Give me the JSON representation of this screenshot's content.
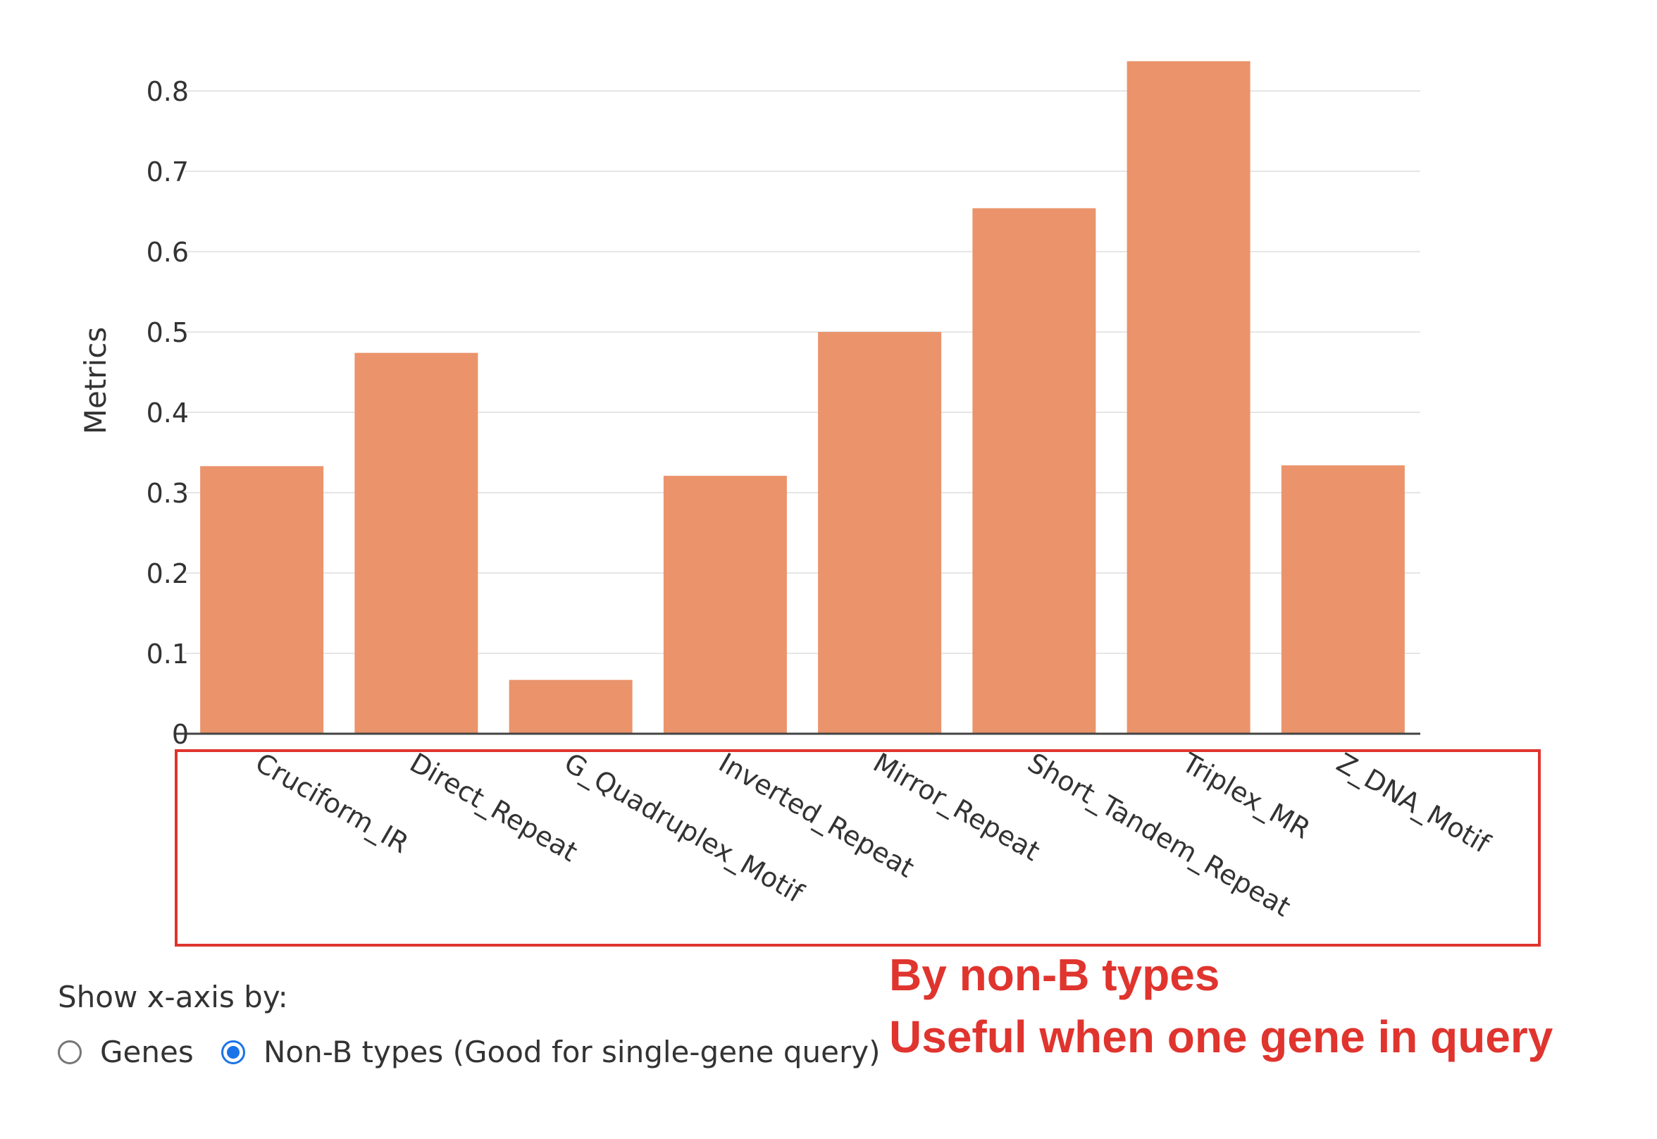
{
  "chart_data": {
    "type": "bar",
    "categories": [
      "Cruciform_IR",
      "Direct_Repeat",
      "G_Quadruplex_Motif",
      "Inverted_Repeat",
      "Mirror_Repeat",
      "Short_Tandem_Repeat",
      "Triplex_MR",
      "Z_DNA_Motif"
    ],
    "values": [
      0.333,
      0.474,
      0.067,
      0.321,
      0.5,
      0.654,
      0.837,
      0.334
    ],
    "ylabel": "Metrics",
    "xlabel": "",
    "ylim": [
      0,
      0.84
    ],
    "yticks": [
      0,
      0.1,
      0.2,
      0.3,
      0.4,
      0.5,
      0.6,
      0.7,
      0.8
    ],
    "ytick_labels": [
      "0",
      "0.1",
      "0.2",
      "0.3",
      "0.4",
      "0.5",
      "0.6",
      "0.7",
      "0.8"
    ],
    "bar_color": "#eb936b",
    "grid": true
  },
  "highlight_color": "#e0342e",
  "controls": {
    "label": "Show x-axis by:",
    "options": [
      {
        "label": "Genes",
        "checked": false
      },
      {
        "label": "Non-B types (Good for single-gene query)",
        "checked": true
      }
    ]
  },
  "annotation": {
    "line1": "By non-B types",
    "line2": "Useful when one gene in query"
  }
}
